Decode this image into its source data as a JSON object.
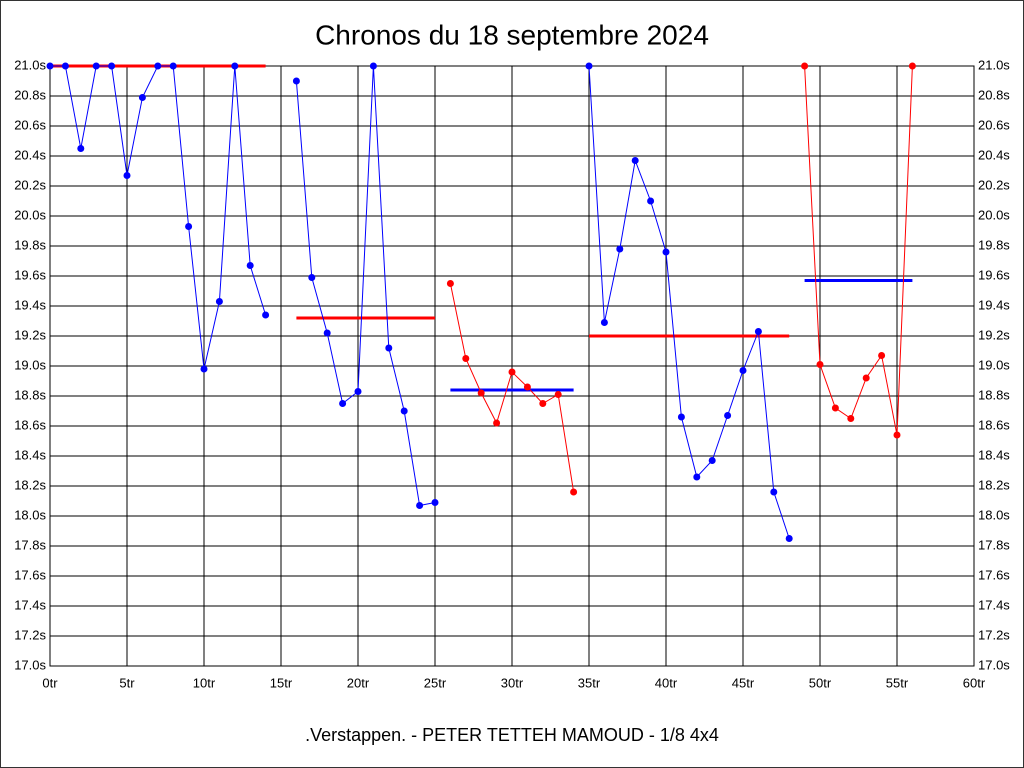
{
  "chart_data": {
    "type": "line",
    "title": "Chronos du 18 septembre 2024",
    "subtitle": ".Verstappen. - PETER TETTEH MAMOUD - 1/8 4x4",
    "x": [
      0,
      1,
      2,
      3,
      4,
      5,
      6,
      7,
      8,
      9,
      10,
      11,
      12,
      13,
      14,
      15,
      16,
      17,
      18,
      19,
      20,
      21,
      22,
      23,
      24,
      25,
      26,
      27,
      28,
      29,
      30,
      31,
      32,
      33,
      34,
      35,
      36,
      37,
      38,
      39,
      40,
      41,
      42,
      43,
      44,
      45,
      46,
      47,
      48,
      49,
      50,
      51,
      52,
      53,
      54,
      55,
      56
    ],
    "series": [
      {
        "color": "#0000ff",
        "values": [
          21.0,
          21.0,
          20.45,
          21.0,
          21.0,
          20.27,
          20.79,
          21.0,
          21.0,
          19.93,
          18.98,
          19.43,
          21.0,
          19.67,
          19.34,
          null,
          20.9,
          19.59,
          19.22,
          18.75,
          18.83,
          21.0,
          19.12,
          18.7,
          18.07,
          18.09,
          null,
          null,
          null,
          null,
          null,
          null,
          null,
          null,
          null,
          21.0,
          19.29,
          19.78,
          20.37,
          20.1,
          19.76,
          18.66,
          18.26,
          18.37,
          18.67,
          18.97,
          19.23,
          18.16,
          17.85,
          null,
          null,
          null,
          null,
          null,
          null,
          null,
          null
        ]
      },
      {
        "color": "#ff0000",
        "values": [
          null,
          null,
          null,
          null,
          null,
          null,
          null,
          null,
          null,
          null,
          null,
          null,
          null,
          null,
          null,
          null,
          null,
          null,
          null,
          null,
          null,
          null,
          null,
          null,
          null,
          null,
          19.55,
          19.05,
          18.82,
          18.62,
          18.96,
          18.86,
          18.75,
          18.81,
          18.16,
          null,
          null,
          null,
          null,
          null,
          null,
          null,
          null,
          null,
          null,
          null,
          null,
          null,
          null,
          21.0,
          19.01,
          18.72,
          18.65,
          18.92,
          19.07,
          18.54,
          21.0
        ]
      }
    ],
    "averages": [
      {
        "from": 0,
        "to": 14,
        "value": 21.0,
        "color": "#ff0000"
      },
      {
        "from": 16,
        "to": 25,
        "value": 19.32,
        "color": "#ff0000"
      },
      {
        "from": 26,
        "to": 34,
        "value": 18.84,
        "color": "#0000ff"
      },
      {
        "from": 35,
        "to": 48,
        "value": 19.2,
        "color": "#ff0000"
      },
      {
        "from": 49,
        "to": 56,
        "value": 19.57,
        "color": "#0000ff"
      }
    ],
    "xlim": [
      0,
      60
    ],
    "xticks": [
      {
        "value": 0,
        "label": "0tr"
      },
      {
        "value": 5,
        "label": "5tr"
      },
      {
        "value": 10,
        "label": "10tr"
      },
      {
        "value": 15,
        "label": "15tr"
      },
      {
        "value": 20,
        "label": "20tr"
      },
      {
        "value": 25,
        "label": "25tr"
      },
      {
        "value": 30,
        "label": "30tr"
      },
      {
        "value": 35,
        "label": "35tr"
      },
      {
        "value": 40,
        "label": "40tr"
      },
      {
        "value": 45,
        "label": "45tr"
      },
      {
        "value": 50,
        "label": "50tr"
      },
      {
        "value": 55,
        "label": "55tr"
      },
      {
        "value": 60,
        "label": "60tr"
      }
    ],
    "ylim": [
      17.0,
      21.0
    ],
    "yticks": [
      {
        "value": 17.0,
        "label": "17.0s"
      },
      {
        "value": 17.2,
        "label": "17.2s"
      },
      {
        "value": 17.4,
        "label": "17.4s"
      },
      {
        "value": 17.6,
        "label": "17.6s"
      },
      {
        "value": 17.8,
        "label": "17.8s"
      },
      {
        "value": 18.0,
        "label": "18.0s"
      },
      {
        "value": 18.2,
        "label": "18.2s"
      },
      {
        "value": 18.4,
        "label": "18.4s"
      },
      {
        "value": 18.6,
        "label": "18.6s"
      },
      {
        "value": 18.8,
        "label": "18.8s"
      },
      {
        "value": 19.0,
        "label": "19.0s"
      },
      {
        "value": 19.2,
        "label": "19.2s"
      },
      {
        "value": 19.4,
        "label": "19.4s"
      },
      {
        "value": 19.6,
        "label": "19.6s"
      },
      {
        "value": 19.8,
        "label": "19.8s"
      },
      {
        "value": 20.0,
        "label": "20.0s"
      },
      {
        "value": 20.2,
        "label": "20.2s"
      },
      {
        "value": 20.4,
        "label": "20.4s"
      },
      {
        "value": 20.6,
        "label": "20.6s"
      },
      {
        "value": 20.8,
        "label": "20.8s"
      },
      {
        "value": 21.0,
        "label": "21.0s"
      }
    ],
    "grid": true
  }
}
